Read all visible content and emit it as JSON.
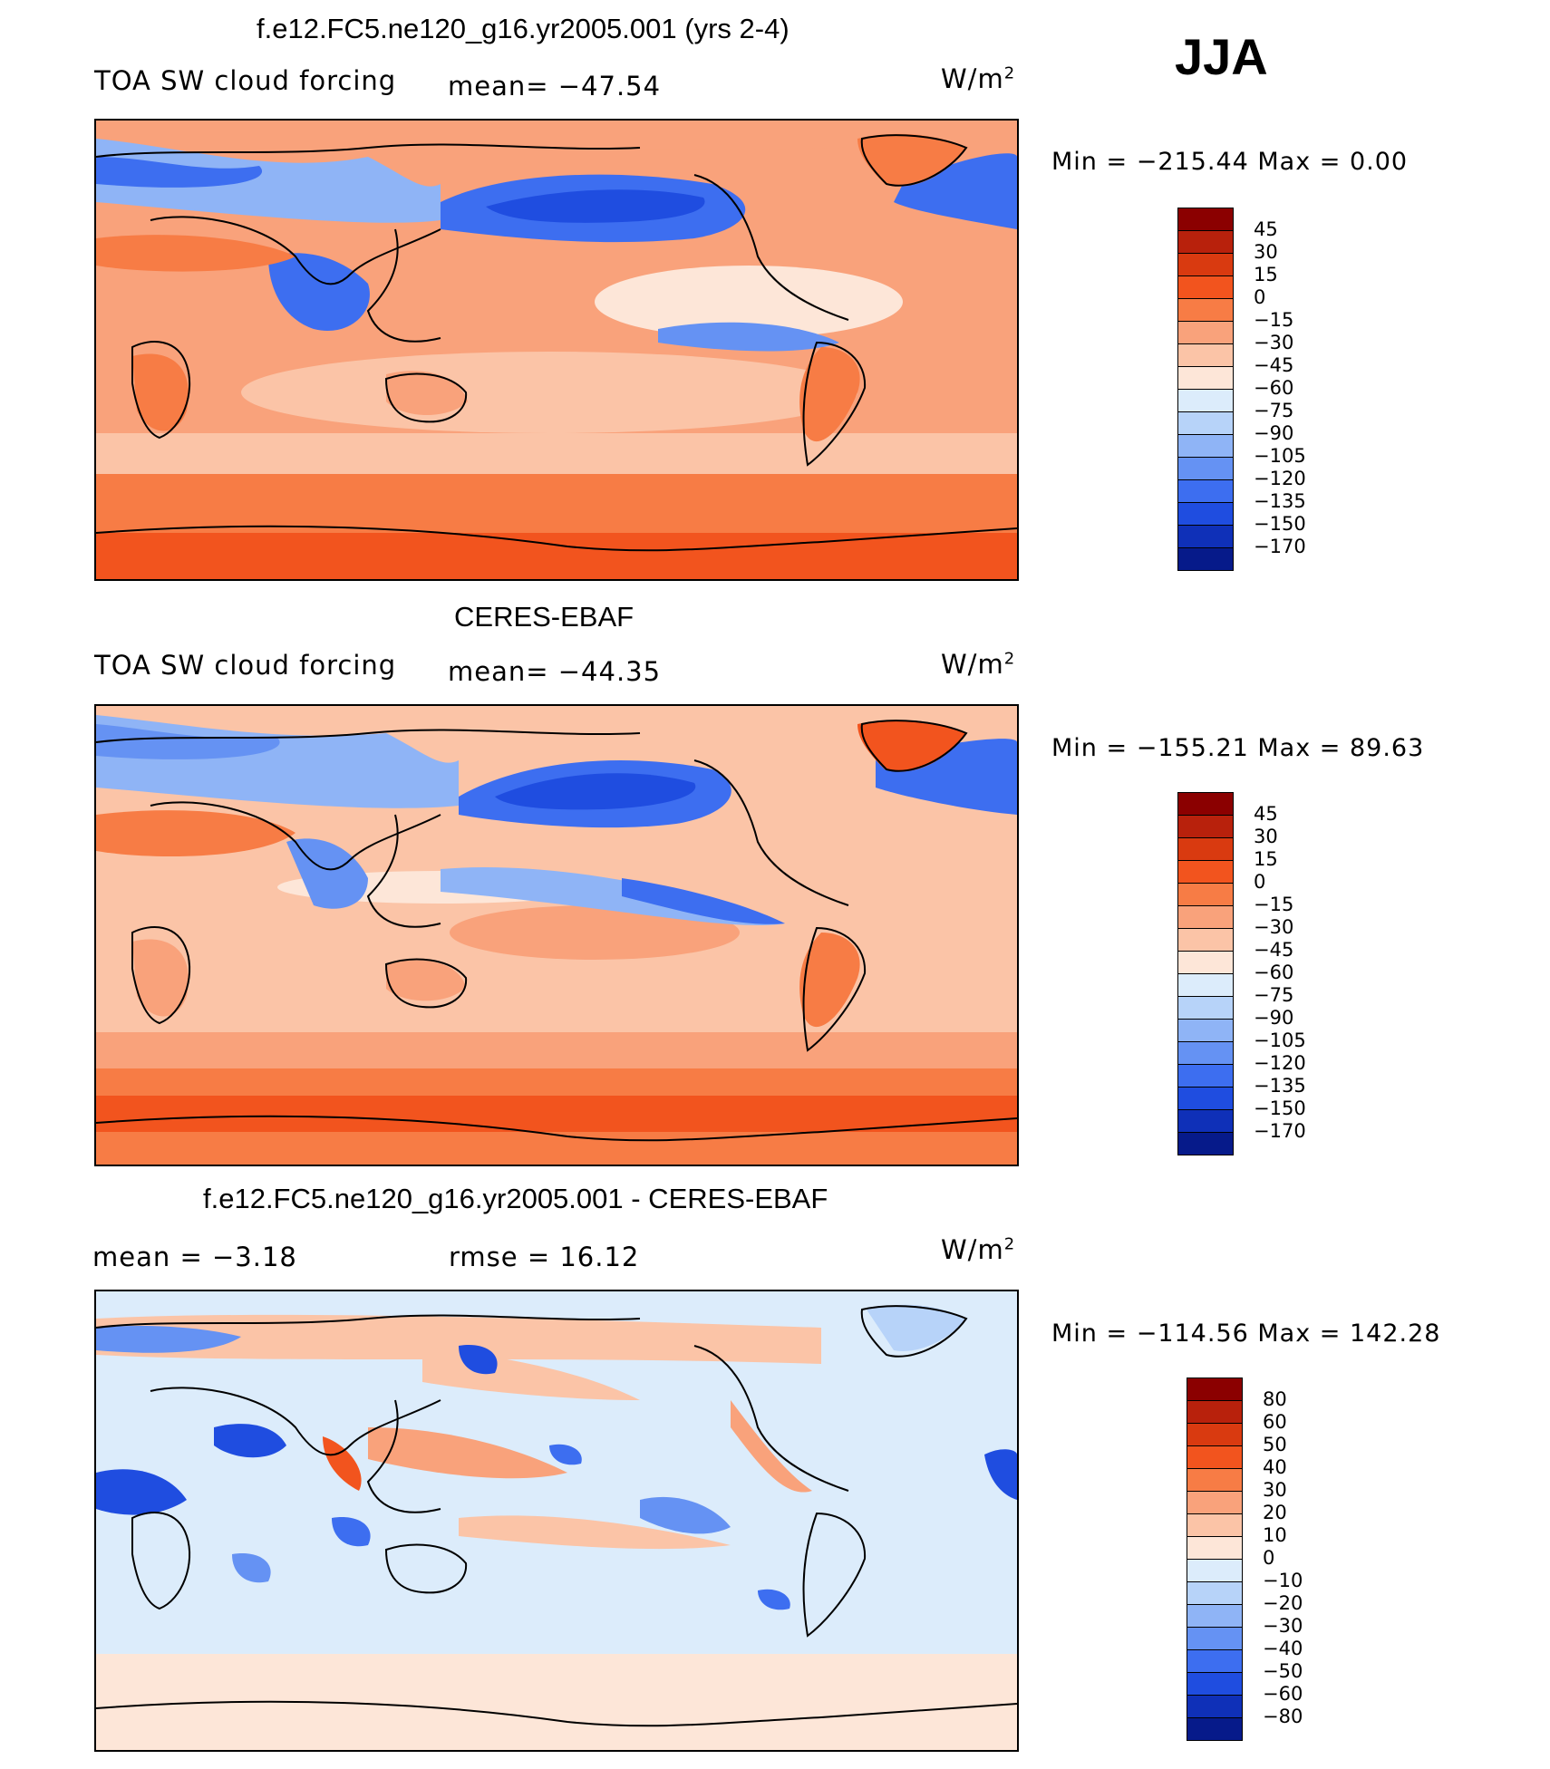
{
  "season": "JJA",
  "units_main": "W/m",
  "units_exp": "2",
  "panels": [
    {
      "title": "f.e12.FC5.ne120_g16.yr2005.001 (yrs 2-4)",
      "left_label": "TOA SW cloud forcing",
      "mid_label": "mean=  −47.54",
      "minmax": "Min  =  −215.44  Max  =     0.00"
    },
    {
      "title": "CERES-EBAF",
      "left_label": "TOA SW cloud forcing",
      "mid_label": "mean=  −44.35",
      "minmax": "Min  =  −155.21  Max  =    89.63"
    },
    {
      "title": "f.e12.FC5.ne120_g16.yr2005.001 - CERES-EBAF",
      "left_label": "mean  =    −3.18",
      "mid_label": "rmse  =    16.12",
      "minmax": "Min  =  −114.56  Max  =  142.28"
    }
  ],
  "colorbar_main": {
    "labels": [
      "45",
      "30",
      "15",
      "0",
      "−15",
      "−30",
      "−45",
      "−60",
      "−75",
      "−90",
      "−105",
      "−120",
      "−135",
      "−150",
      "−170"
    ],
    "colors": [
      "#8b0000",
      "#b8210c",
      "#d93a10",
      "#f2541e",
      "#f77c45",
      "#f9a27b",
      "#fbc4a7",
      "#fde6d8",
      "#dcecfb",
      "#b7d3f9",
      "#8fb4f6",
      "#6592f3",
      "#3d6ef0",
      "#1f4de0",
      "#0f30b8",
      "#061a8a"
    ]
  },
  "colorbar_diff": {
    "labels": [
      "80",
      "60",
      "50",
      "40",
      "30",
      "20",
      "10",
      "0",
      "−10",
      "−20",
      "−30",
      "−40",
      "−50",
      "−60",
      "−80"
    ],
    "colors": [
      "#8b0000",
      "#b8210c",
      "#d93a10",
      "#f2541e",
      "#f77c45",
      "#f9a27b",
      "#fbc4a7",
      "#fde6d8",
      "#dcecfb",
      "#b7d3f9",
      "#8fb4f6",
      "#6592f3",
      "#3d6ef0",
      "#1f4de0",
      "#0f30b8",
      "#061a8a"
    ]
  }
}
